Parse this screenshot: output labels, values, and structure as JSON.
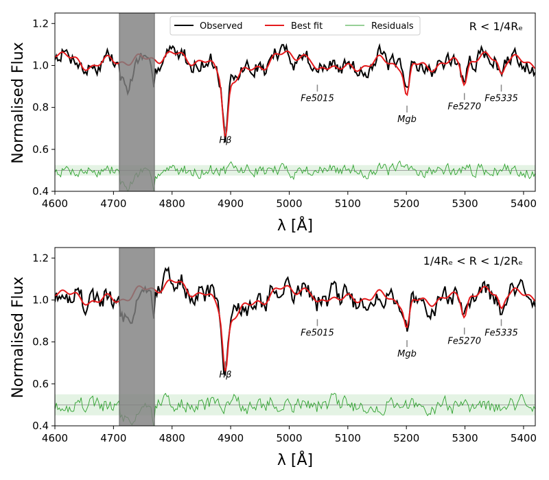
{
  "chart_data": [
    {
      "type": "line",
      "panel_label": "R < 1/4Rₑ",
      "xlabel": "λ [Å]",
      "ylabel": "Normalised Flux",
      "xlim": [
        4600,
        5420
      ],
      "ylim": [
        0.4,
        1.25
      ],
      "xticks": [
        4600,
        4700,
        4800,
        4900,
        5000,
        5100,
        5200,
        5300,
        5400
      ],
      "xtick_labels": [
        "4600",
        "4700",
        "4800",
        "4900",
        "5000",
        "5100",
        "5200",
        "5300",
        "5400"
      ],
      "yticks": [
        0.4,
        0.6,
        0.8,
        1.0,
        1.2
      ],
      "ytick_labels": [
        "0.4",
        "0.6",
        "0.8",
        "1.0",
        "1.2"
      ],
      "masked_region": [
        4710,
        4770
      ],
      "residual_band": [
        0.475,
        0.525
      ],
      "residual_offset": 0.5,
      "legend": [
        "Observed",
        "Best fit",
        "Residuals"
      ],
      "legend_position": "top",
      "colors": {
        "observed": "#000000",
        "best_fit": "#e41a1c",
        "residuals": "#2ca02c",
        "mask": "#808080"
      },
      "absorption_lines": [
        {
          "name": "Hβ",
          "wavelength": 4891,
          "depth": 0.27,
          "label_y": 0.63
        },
        {
          "name": "Fe5015",
          "wavelength": 5048,
          "depth": 0.06,
          "label_y": 0.83
        },
        {
          "name": "Mgb",
          "wavelength": 5201,
          "depth": 0.15,
          "label_y": 0.73
        },
        {
          "name": "Fe5270",
          "wavelength": 5299,
          "depth": 0.09,
          "label_y": 0.79
        },
        {
          "name": "Fe5335",
          "wavelength": 5362,
          "depth": 0.07,
          "label_y": 0.83
        }
      ],
      "continuum": [
        [
          4600,
          1.07
        ],
        [
          4650,
          1.0
        ],
        [
          4700,
          1.02
        ],
        [
          4760,
          1.03
        ],
        [
          4800,
          1.05
        ],
        [
          4850,
          1.02
        ],
        [
          4900,
          0.93
        ],
        [
          4950,
          1.0
        ],
        [
          5000,
          1.06
        ],
        [
          5050,
          1.02
        ],
        [
          5100,
          0.98
        ],
        [
          5150,
          1.02
        ],
        [
          5200,
          1.0
        ],
        [
          5250,
          1.0
        ],
        [
          5300,
          1.02
        ],
        [
          5350,
          1.04
        ],
        [
          5420,
          1.01
        ]
      ],
      "noise_amplitude": 0.035,
      "seed": 7
    },
    {
      "type": "line",
      "panel_label": "1/4Rₑ < R < 1/2Rₑ",
      "xlabel": "λ [Å]",
      "ylabel": "Normalised Flux",
      "xlim": [
        4600,
        5420
      ],
      "ylim": [
        0.4,
        1.25
      ],
      "xticks": [
        4600,
        4700,
        4800,
        4900,
        5000,
        5100,
        5200,
        5300,
        5400
      ],
      "xtick_labels": [
        "4600",
        "4700",
        "4800",
        "4900",
        "5000",
        "5100",
        "5200",
        "5300",
        "5400"
      ],
      "yticks": [
        0.4,
        0.6,
        0.8,
        1.0,
        1.2
      ],
      "ytick_labels": [
        "0.4",
        "0.6",
        "0.8",
        "1.0",
        "1.2"
      ],
      "masked_region": [
        4710,
        4770
      ],
      "residual_band": [
        0.45,
        0.55
      ],
      "residual_offset": 0.5,
      "colors": {
        "observed": "#000000",
        "best_fit": "#e41a1c",
        "residuals": "#2ca02c",
        "mask": "#808080"
      },
      "absorption_lines": [
        {
          "name": "Hβ",
          "wavelength": 4891,
          "depth": 0.26,
          "label_y": 0.63
        },
        {
          "name": "Fe5015",
          "wavelength": 5048,
          "depth": 0.06,
          "label_y": 0.83
        },
        {
          "name": "Mgb",
          "wavelength": 5201,
          "depth": 0.13,
          "label_y": 0.73
        },
        {
          "name": "Fe5270",
          "wavelength": 5299,
          "depth": 0.08,
          "label_y": 0.79
        },
        {
          "name": "Fe5335",
          "wavelength": 5362,
          "depth": 0.07,
          "label_y": 0.83
        }
      ],
      "continuum": [
        [
          4600,
          1.05
        ],
        [
          4650,
          1.0
        ],
        [
          4700,
          1.0
        ],
        [
          4760,
          1.05
        ],
        [
          4800,
          1.08
        ],
        [
          4850,
          1.03
        ],
        [
          4900,
          0.92
        ],
        [
          4950,
          1.0
        ],
        [
          5000,
          1.06
        ],
        [
          5050,
          1.03
        ],
        [
          5100,
          1.0
        ],
        [
          5150,
          1.02
        ],
        [
          5200,
          0.99
        ],
        [
          5250,
          1.0
        ],
        [
          5300,
          1.02
        ],
        [
          5350,
          1.04
        ],
        [
          5420,
          1.02
        ]
      ],
      "noise_amplitude": 0.045,
      "seed": 19
    }
  ]
}
